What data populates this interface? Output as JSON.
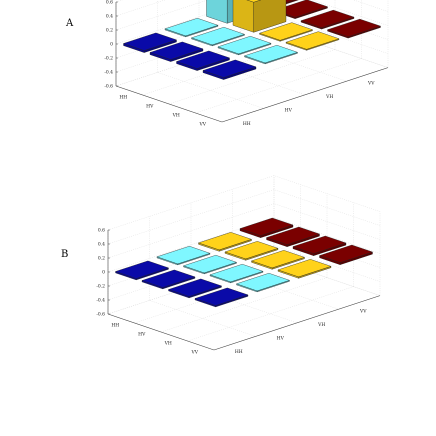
{
  "chart_data": [
    {
      "type": "bar3d",
      "panel_label": "A",
      "row_labels": [
        "HH",
        "HV",
        "VH",
        "VV"
      ],
      "col_labels": [
        "HH",
        "HV",
        "VH",
        "VV"
      ],
      "zticks": [
        "0.6",
        "0.4",
        "0.2",
        "0",
        "-0.2",
        "-0.4",
        "-0.6"
      ],
      "zlim": [
        -0.6,
        0.6
      ],
      "values": [
        [
          -0.03,
          0.0,
          0.41,
          0.02
        ],
        [
          -0.03,
          0.0,
          0.43,
          0.02
        ],
        [
          -0.03,
          0.0,
          0.0,
          -0.02
        ],
        [
          -0.03,
          0.0,
          0.0,
          -0.02
        ]
      ],
      "colors": [
        [
          "#0a0aa8",
          "#7ff7ff",
          "#7ff7ff",
          "#7a0000"
        ],
        [
          "#0a0aa8",
          "#7ff7ff",
          "#ffd21a",
          "#7a0000"
        ],
        [
          "#0a0aa8",
          "#7ff7ff",
          "#ffd21a",
          "#7a0000"
        ],
        [
          "#0a0aa8",
          "#7ff7ff",
          "#ffd21a",
          "#7a0000"
        ]
      ]
    },
    {
      "type": "bar3d",
      "panel_label": "B",
      "row_labels": [
        "HH",
        "HV",
        "VH",
        "VV"
      ],
      "col_labels": [
        "HH",
        "HV",
        "VH",
        "VV"
      ],
      "zticks": [
        "0.6",
        "0.4",
        "0.2",
        "0",
        "-0.2",
        "-0.4",
        "-0.6"
      ],
      "zlim": [
        -0.6,
        0.6
      ],
      "values": [
        [
          -0.02,
          0.0,
          0.02,
          0.03
        ],
        [
          -0.02,
          0.0,
          0.02,
          0.03
        ],
        [
          -0.02,
          0.0,
          0.02,
          0.03
        ],
        [
          -0.02,
          0.0,
          0.02,
          0.03
        ]
      ],
      "colors": [
        [
          "#0a0aa8",
          "#7ff7ff",
          "#ffd21a",
          "#7a0000"
        ],
        [
          "#0a0aa8",
          "#7ff7ff",
          "#ffd21a",
          "#7a0000"
        ],
        [
          "#0a0aa8",
          "#7ff7ff",
          "#ffd21a",
          "#7a0000"
        ],
        [
          "#0a0aa8",
          "#7ff7ff",
          "#ffd21a",
          "#7a0000"
        ]
      ]
    }
  ]
}
